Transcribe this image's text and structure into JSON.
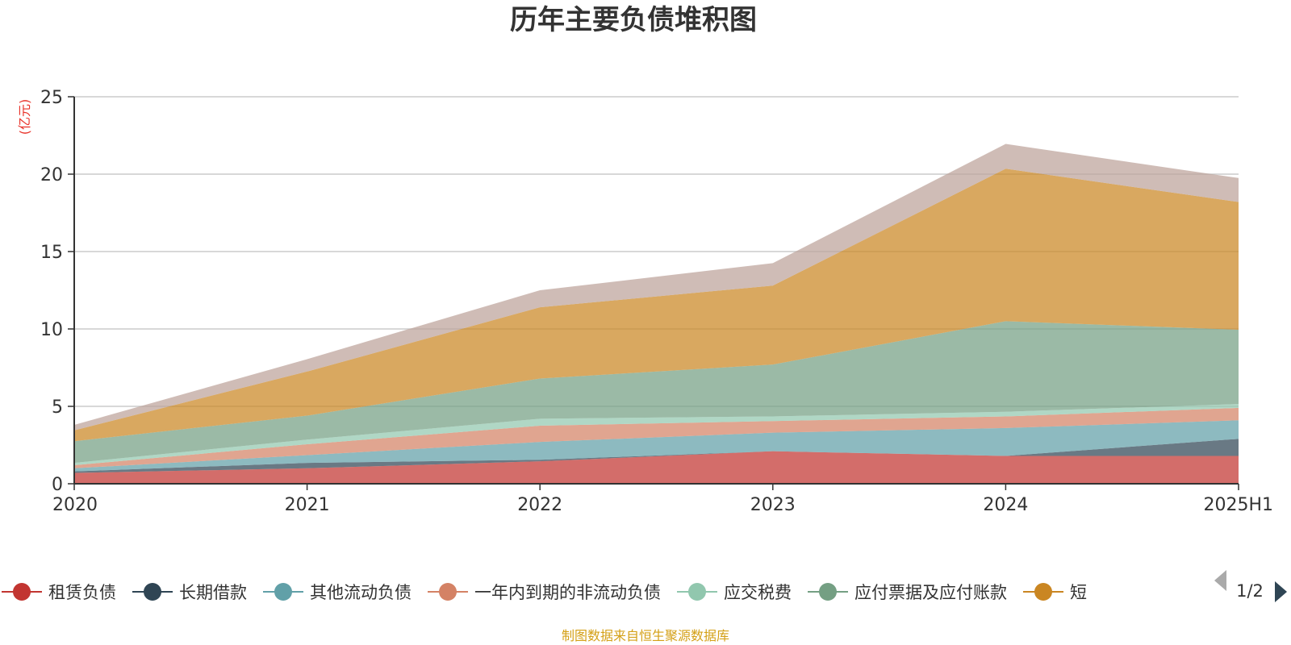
{
  "chart_data": {
    "type": "area",
    "title": "历年主要负债堆积图",
    "ylabel": "(亿元)",
    "ylim": [
      0,
      25
    ],
    "yticks": [
      0,
      5,
      10,
      15,
      20,
      25
    ],
    "categories": [
      "2020",
      "2021",
      "2022",
      "2023",
      "2024",
      "2025H1"
    ],
    "stacked": true,
    "grid": true,
    "legend_position": "bottom",
    "legend_page": "1/2",
    "series": [
      {
        "name": "租赁负债",
        "color": "#c23531",
        "values": [
          0.7,
          1.0,
          1.45,
          2.1,
          1.8,
          1.8
        ]
      },
      {
        "name": "长期借款",
        "color": "#2f4554",
        "values": [
          0.1,
          0.35,
          0.1,
          0.0,
          0.0,
          1.1
        ]
      },
      {
        "name": "其他流动负债",
        "color": "#61a0a8",
        "values": [
          0.2,
          0.5,
          1.15,
          1.2,
          1.8,
          1.2
        ]
      },
      {
        "name": "一年内到期的非流动负债",
        "color": "#d48265",
        "values": [
          0.2,
          0.7,
          1.05,
          0.75,
          0.75,
          0.8
        ]
      },
      {
        "name": "应交税费",
        "color": "#91c7ae",
        "values": [
          0.15,
          0.3,
          0.45,
          0.3,
          0.3,
          0.25
        ]
      },
      {
        "name": "应付票据及应付账款",
        "color": "#749f83",
        "values": [
          1.4,
          1.55,
          2.6,
          3.35,
          5.85,
          4.8
        ]
      },
      {
        "name": "短",
        "color": "#ca8622",
        "values": [
          0.7,
          2.85,
          4.6,
          5.1,
          9.85,
          8.25
        ]
      },
      {
        "name": "",
        "color": "#bda29a",
        "values": [
          0.35,
          0.8,
          1.1,
          1.45,
          1.6,
          1.55
        ]
      }
    ],
    "source": "制图数据来自恒生聚源数据库"
  },
  "colors": {
    "axis": "#333333",
    "grid": "#cccccc",
    "unit": "#e8332a",
    "source": "#d4a017",
    "pager_inactive": "#aaaaaa",
    "pager_active": "#2f4554"
  }
}
